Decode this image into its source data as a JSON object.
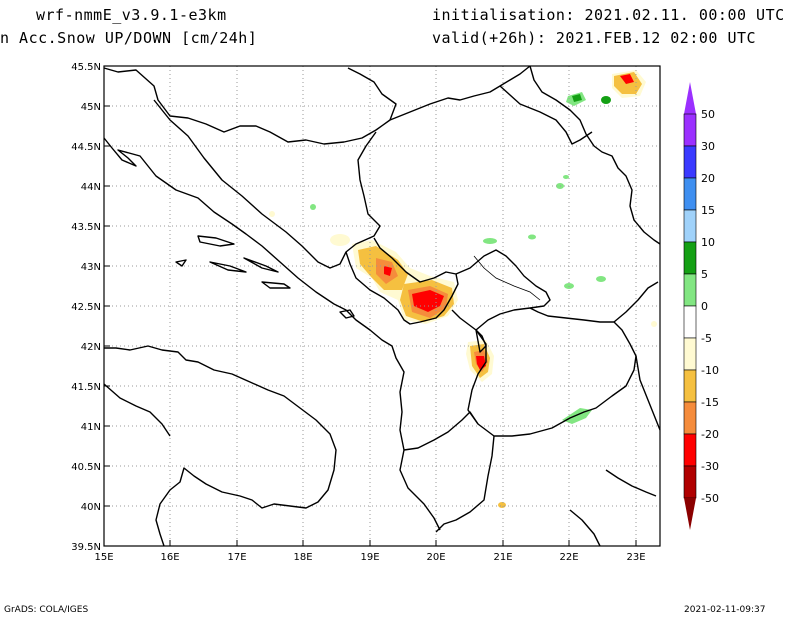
{
  "header": {
    "model": "wrf-nmmE_v3.9.1-e3km",
    "field": "n Acc.Snow UP/DOWN [cm/24h]",
    "init": "initialisation: 2021.02.11.  00:00 UTC",
    "valid": "valid(+26h): 2021.FEB.12 02:00 UTC"
  },
  "axes": {
    "lat_labels": [
      "45.5N",
      "45N",
      "44.5N",
      "44N",
      "43.5N",
      "43N",
      "42.5N",
      "42N",
      "41.5N",
      "41N",
      "40.5N",
      "40N",
      "39.5N"
    ],
    "lon_labels": [
      "15E",
      "16E",
      "17E",
      "18E",
      "19E",
      "20E",
      "21E",
      "22E",
      "23E"
    ]
  },
  "colorbar": {
    "labels": [
      "50",
      "30",
      "20",
      "15",
      "10",
      "5",
      "0",
      "-5",
      "-10",
      "-15",
      "-20",
      "-30",
      "-50"
    ],
    "colors": [
      "#9b30ff",
      "#3a3aff",
      "#3f8ff0",
      "#a0d2fa",
      "#14a014",
      "#82e682",
      "#ffffff",
      "#fffad2",
      "#f5c040",
      "#f58c3c",
      "#ff0000",
      "#b00000"
    ],
    "top_arrow_color": "#9b30ff",
    "bottom_arrow_color": "#8b0000"
  },
  "footer": {
    "left": "GrADS: COLA/IGES",
    "right": "2021-02-11-09:37"
  }
}
